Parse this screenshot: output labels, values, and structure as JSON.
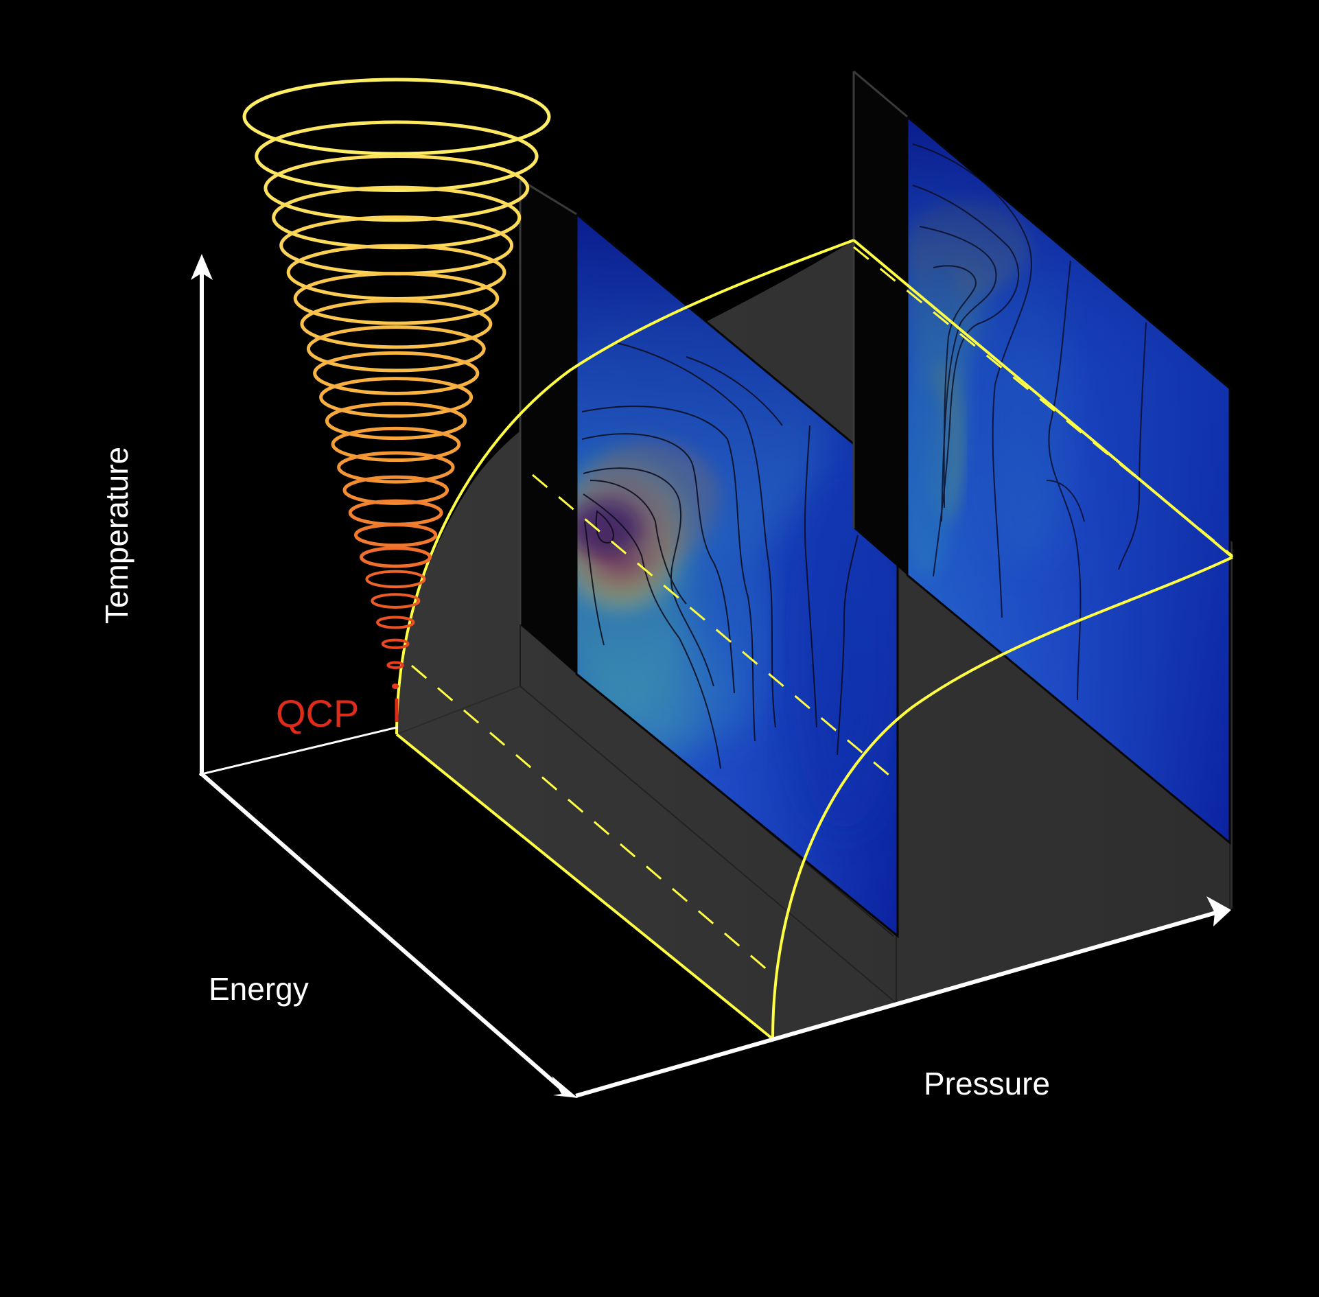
{
  "axes": {
    "temperature": "Temperature",
    "energy": "Energy",
    "pressure": "Pressure"
  },
  "qcp_label": "QCP",
  "colors": {
    "background": "#000000",
    "axis": "#ffffff",
    "floor": "#333333",
    "boundary": "#ffff44",
    "qcp": "#e02a1a",
    "spiral_top": "#ffee66",
    "spiral_bottom": "#e8351c"
  },
  "icons": {
    "axis_arrowheads": "arrowhead",
    "fluctuation_rings": "spiral-cone"
  }
}
